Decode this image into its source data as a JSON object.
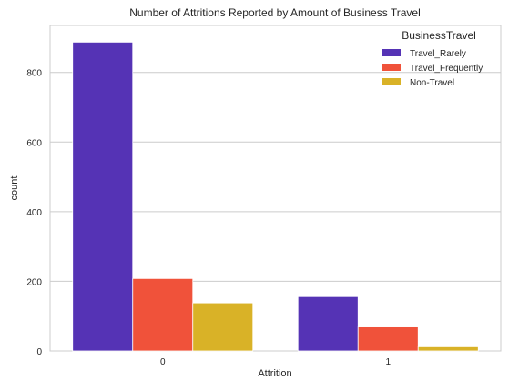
{
  "chart_data": {
    "type": "bar",
    "title": "Number of Attritions Reported by Amount of Business Travel",
    "xlabel": "Attrition",
    "ylabel": "count",
    "categories": [
      "0",
      "1"
    ],
    "ylim": [
      0,
      935
    ],
    "yticks": [
      0,
      200,
      400,
      600,
      800
    ],
    "grid": true,
    "legend": {
      "title": "BusinessTravel",
      "placement": "top-right"
    },
    "series": [
      {
        "name": "Travel_Rarely",
        "color": "#5533b5",
        "values": [
          887,
          156
        ]
      },
      {
        "name": "Travel_Frequently",
        "color": "#f0523a",
        "values": [
          208,
          69
        ]
      },
      {
        "name": "Non-Travel",
        "color": "#d9b227",
        "values": [
          138,
          12
        ]
      }
    ]
  }
}
